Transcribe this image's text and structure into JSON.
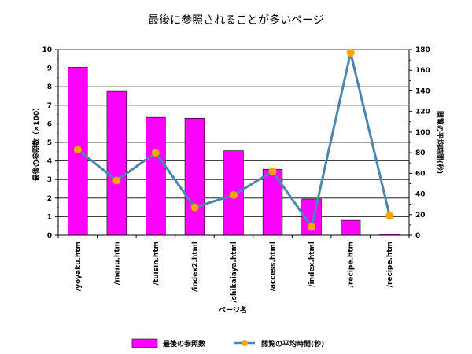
{
  "chart_data": {
    "type": "bar",
    "title": "最後に参照されることが多いページ",
    "xlabel": "ページ名",
    "ylabel_left": "最後の参照数（×100）",
    "ylabel_right": "閲覧の平均時間(秒)",
    "categories": [
      "/yoyaku.htm",
      "/menu.htm",
      "/tuisin.htm",
      "/index2.html",
      "/shikaiaya.html",
      "/access.html",
      "/index.html",
      "/recipe.htm",
      "/recipe.htm"
    ],
    "ylim_left": [
      0,
      10
    ],
    "yticks_left": [
      0,
      1,
      2,
      3,
      4,
      5,
      6,
      7,
      8,
      9,
      10
    ],
    "ylim_right": [
      0,
      180
    ],
    "yticks_right": [
      0,
      20,
      40,
      60,
      80,
      100,
      120,
      140,
      160,
      180
    ],
    "grid": true,
    "legend_position": "bottom",
    "series": [
      {
        "name": "最後の参照数",
        "type": "bar",
        "axis": "left",
        "color": "#ff00ff",
        "values": [
          9.05,
          7.75,
          6.35,
          6.3,
          4.55,
          3.55,
          1.95,
          0.8,
          0.05
        ]
      },
      {
        "name": "閲覧の平均時間(秒)",
        "type": "line",
        "axis": "right",
        "color": "#4a86b0",
        "marker_color": "#ffa500",
        "values": [
          83,
          53,
          80,
          27,
          39,
          62,
          8,
          177,
          19
        ]
      }
    ]
  }
}
